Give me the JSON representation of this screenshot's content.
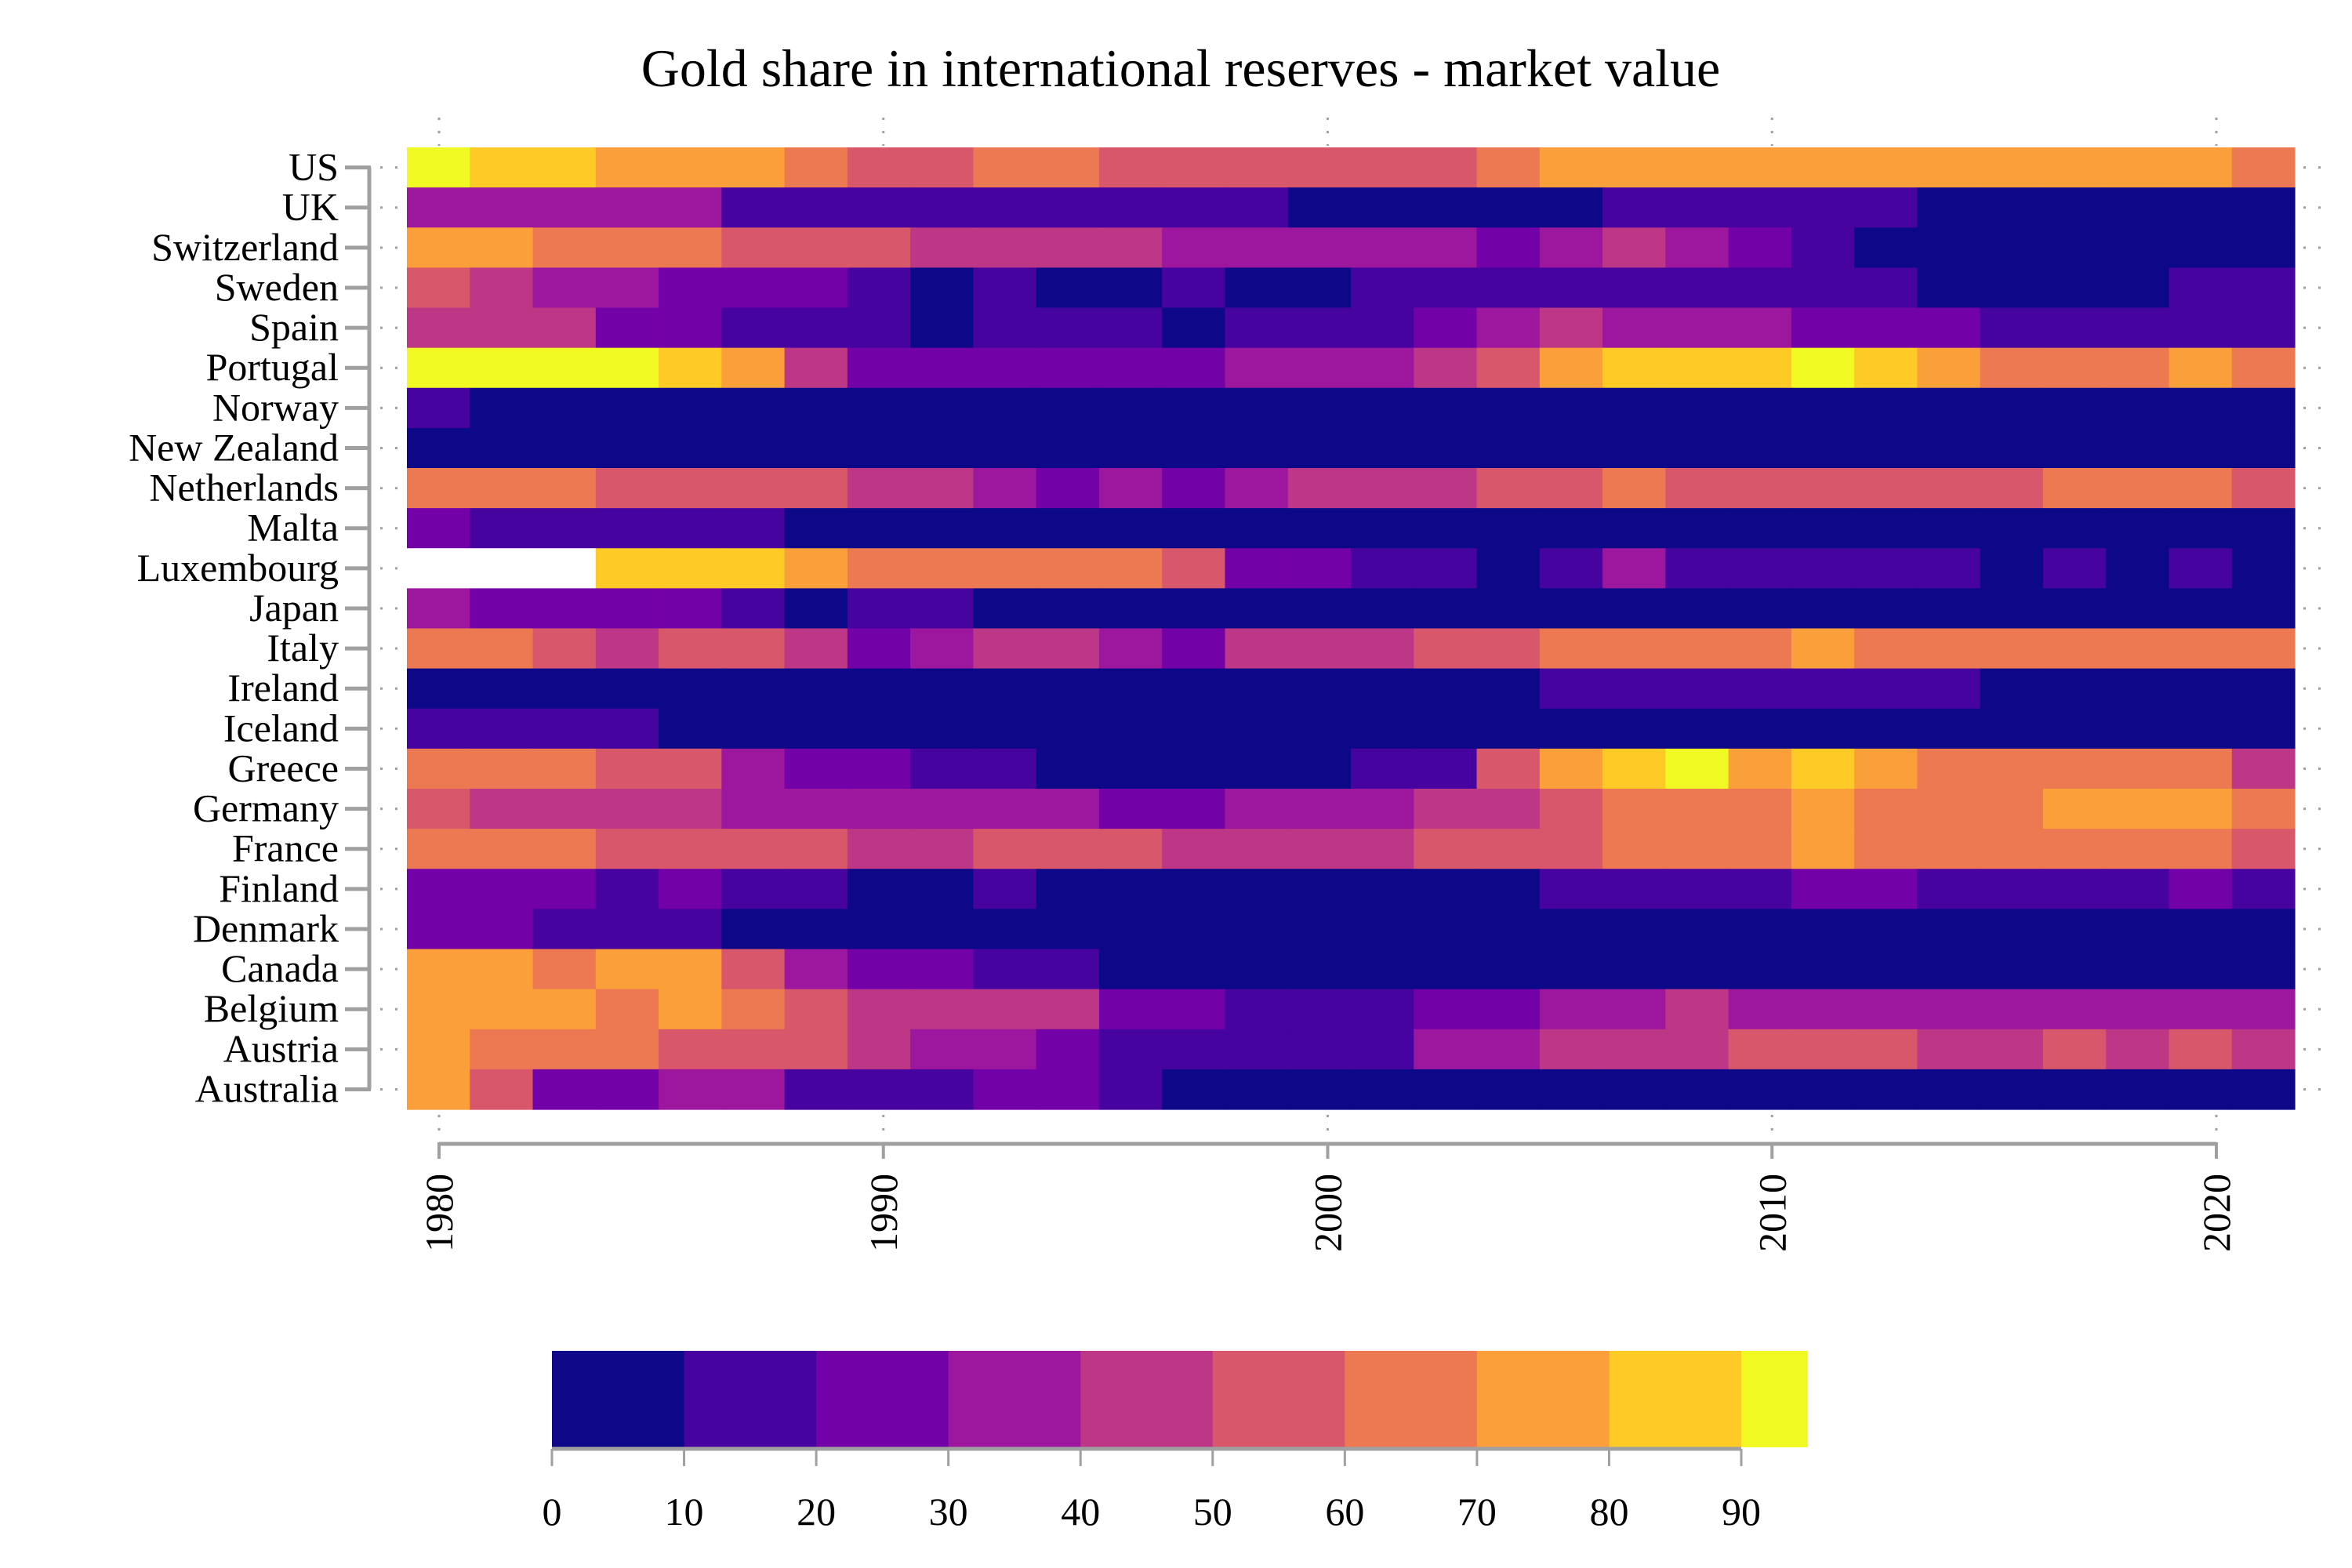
{
  "chart_data": {
    "type": "heatmap",
    "title": "Gold share in international reserves - market value",
    "xlabel": "",
    "ylabel": "",
    "x_tick_labels": [
      "1980",
      "1990",
      "2000",
      "2010",
      "2020"
    ],
    "x_ticks": [
      1980,
      1990,
      2000,
      2010,
      2020
    ],
    "x_range": [
      1979.3,
      2021.7
    ],
    "n_columns": 30,
    "column_start_year": 1980,
    "column_step_years": 1.414,
    "rows": [
      "US",
      "UK",
      "Switzerland",
      "Sweden",
      "Spain",
      "Portugal",
      "Norway",
      "New Zealand",
      "Netherlands",
      "Malta",
      "Luxembourg",
      "Japan",
      "Italy",
      "Ireland",
      "Iceland",
      "Greece",
      "Germany",
      "France",
      "Finland",
      "Denmark",
      "Canada",
      "Belgium",
      "Austria",
      "Australia"
    ],
    "value_encoding": "bin index: value range [10*i, 10*i+10) percent; null = no data",
    "bins": [
      [
        9,
        8,
        8,
        7,
        7,
        7,
        6,
        5,
        5,
        6,
        6,
        5,
        5,
        5,
        5,
        5,
        5,
        6,
        7,
        7,
        7,
        7,
        7,
        7,
        7,
        7,
        7,
        7,
        7,
        6
      ],
      [
        3,
        3,
        3,
        3,
        3,
        1,
        1,
        1,
        1,
        1,
        1,
        1,
        1,
        1,
        0,
        0,
        0,
        0,
        0,
        1,
        1,
        1,
        1,
        1,
        0,
        0,
        0,
        0,
        0,
        0
      ],
      [
        7,
        7,
        6,
        6,
        6,
        5,
        5,
        5,
        4,
        4,
        4,
        4,
        3,
        3,
        3,
        3,
        3,
        2,
        3,
        4,
        3,
        2,
        1,
        0,
        0,
        0,
        0,
        0,
        0,
        0
      ],
      [
        5,
        4,
        3,
        3,
        2,
        2,
        2,
        1,
        0,
        1,
        0,
        0,
        1,
        0,
        0,
        1,
        1,
        1,
        1,
        1,
        1,
        1,
        1,
        1,
        0,
        0,
        0,
        0,
        1,
        1
      ],
      [
        4,
        4,
        4,
        2,
        2,
        1,
        1,
        1,
        0,
        1,
        1,
        1,
        0,
        1,
        1,
        1,
        2,
        3,
        4,
        3,
        3,
        3,
        2,
        2,
        2,
        1,
        1,
        1,
        1,
        1
      ],
      [
        9,
        9,
        9,
        9,
        8,
        7,
        4,
        2,
        2,
        2,
        2,
        2,
        2,
        3,
        3,
        3,
        4,
        5,
        7,
        8,
        8,
        8,
        9,
        8,
        7,
        6,
        6,
        6,
        7,
        6
      ],
      [
        1,
        0,
        0,
        0,
        0,
        0,
        0,
        0,
        0,
        0,
        0,
        0,
        0,
        0,
        0,
        0,
        0,
        0,
        0,
        0,
        0,
        0,
        0,
        0,
        0,
        0,
        0,
        0,
        0,
        0
      ],
      [
        0,
        0,
        0,
        0,
        0,
        0,
        0,
        0,
        0,
        0,
        0,
        0,
        0,
        0,
        0,
        0,
        0,
        0,
        0,
        0,
        0,
        0,
        0,
        0,
        0,
        0,
        0,
        0,
        0,
        0
      ],
      [
        6,
        6,
        6,
        5,
        5,
        5,
        5,
        4,
        4,
        3,
        2,
        3,
        2,
        3,
        4,
        4,
        4,
        5,
        5,
        6,
        5,
        5,
        5,
        5,
        5,
        5,
        6,
        6,
        6,
        5
      ],
      [
        2,
        1,
        1,
        1,
        1,
        1,
        0,
        0,
        0,
        0,
        0,
        0,
        0,
        0,
        0,
        0,
        0,
        0,
        0,
        0,
        0,
        0,
        0,
        0,
        0,
        0,
        0,
        0,
        0,
        0
      ],
      [
        null,
        null,
        null,
        8,
        8,
        8,
        7,
        6,
        6,
        6,
        6,
        6,
        5,
        2,
        2,
        1,
        1,
        0,
        1,
        3,
        1,
        1,
        1,
        1,
        1,
        0,
        1,
        0,
        1,
        0
      ],
      [
        3,
        2,
        2,
        2,
        2,
        1,
        0,
        1,
        1,
        0,
        0,
        0,
        0,
        0,
        0,
        0,
        0,
        0,
        0,
        0,
        0,
        0,
        0,
        0,
        0,
        0,
        0,
        0,
        0,
        0
      ],
      [
        6,
        6,
        5,
        4,
        5,
        5,
        4,
        2,
        3,
        4,
        4,
        3,
        2,
        4,
        4,
        4,
        5,
        5,
        6,
        6,
        6,
        6,
        7,
        6,
        6,
        6,
        6,
        6,
        6,
        6
      ],
      [
        0,
        0,
        0,
        0,
        0,
        0,
        0,
        0,
        0,
        0,
        0,
        0,
        0,
        0,
        0,
        0,
        0,
        0,
        1,
        1,
        1,
        1,
        1,
        1,
        1,
        0,
        0,
        0,
        0,
        0
      ],
      [
        1,
        1,
        1,
        1,
        0,
        0,
        0,
        0,
        0,
        0,
        0,
        0,
        0,
        0,
        0,
        0,
        0,
        0,
        0,
        0,
        0,
        0,
        0,
        0,
        0,
        0,
        0,
        0,
        0,
        0
      ],
      [
        6,
        6,
        6,
        5,
        5,
        3,
        2,
        2,
        1,
        1,
        0,
        0,
        0,
        0,
        0,
        1,
        1,
        5,
        7,
        8,
        9,
        7,
        8,
        7,
        6,
        6,
        6,
        6,
        6,
        4
      ],
      [
        5,
        4,
        4,
        4,
        4,
        3,
        3,
        3,
        3,
        3,
        3,
        2,
        2,
        3,
        3,
        3,
        4,
        4,
        5,
        6,
        6,
        6,
        7,
        6,
        6,
        6,
        7,
        7,
        7,
        6
      ],
      [
        6,
        6,
        6,
        5,
        5,
        5,
        5,
        4,
        4,
        5,
        5,
        5,
        4,
        4,
        4,
        4,
        5,
        5,
        5,
        6,
        6,
        6,
        7,
        6,
        6,
        6,
        6,
        6,
        6,
        5
      ],
      [
        2,
        2,
        2,
        1,
        2,
        1,
        1,
        0,
        0,
        1,
        0,
        0,
        0,
        0,
        0,
        0,
        0,
        0,
        1,
        1,
        1,
        1,
        2,
        2,
        1,
        1,
        1,
        1,
        2,
        1
      ],
      [
        2,
        2,
        1,
        1,
        1,
        0,
        0,
        0,
        0,
        0,
        0,
        0,
        0,
        0,
        0,
        0,
        0,
        0,
        0,
        0,
        0,
        0,
        0,
        0,
        0,
        0,
        0,
        0,
        0,
        0
      ],
      [
        7,
        7,
        6,
        7,
        7,
        5,
        3,
        2,
        2,
        1,
        1,
        0,
        0,
        0,
        0,
        0,
        0,
        0,
        0,
        0,
        0,
        0,
        0,
        0,
        0,
        0,
        0,
        0,
        0,
        0
      ],
      [
        7,
        7,
        7,
        6,
        7,
        6,
        5,
        4,
        4,
        4,
        4,
        2,
        2,
        1,
        1,
        1,
        2,
        2,
        3,
        3,
        4,
        3,
        3,
        3,
        3,
        3,
        3,
        3,
        3,
        3
      ],
      [
        7,
        6,
        6,
        6,
        5,
        5,
        5,
        4,
        3,
        3,
        2,
        1,
        1,
        1,
        1,
        1,
        3,
        3,
        4,
        4,
        4,
        5,
        5,
        5,
        4,
        4,
        5,
        4,
        5,
        4
      ],
      [
        7,
        5,
        2,
        2,
        3,
        3,
        1,
        1,
        1,
        2,
        2,
        1,
        0,
        0,
        0,
        0,
        0,
        0,
        0,
        0,
        0,
        0,
        0,
        0,
        0,
        0,
        0,
        0,
        0,
        0
      ]
    ],
    "colorbar": {
      "range": [
        0,
        95
      ],
      "tick_labels": [
        "0",
        "10",
        "20",
        "30",
        "40",
        "50",
        "60",
        "70",
        "80",
        "90"
      ],
      "ticks": [
        0,
        10,
        20,
        30,
        40,
        50,
        60,
        70,
        80,
        90
      ],
      "colors": [
        "#0d0887",
        "#47039f",
        "#7301a8",
        "#9c179e",
        "#bd3786",
        "#d8576b",
        "#ed7953",
        "#fb9f3a",
        "#fdca26",
        "#f0f921"
      ],
      "placement": "bottom"
    },
    "grid": "dotted ticks only",
    "legend": "colorbar bottom-center"
  },
  "style": {
    "axis_color": "#a0a0a0",
    "missing_color": "#ffffff"
  }
}
